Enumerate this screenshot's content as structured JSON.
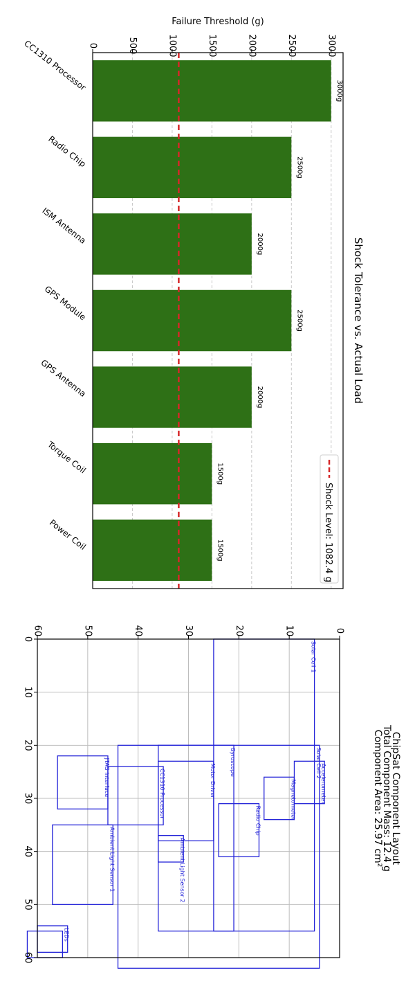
{
  "chart_data": [
    {
      "type": "bar",
      "orientation": "horizontal-in-rotated-page",
      "title": "Shock Tolerance vs. Actual Load",
      "ylabel": "Failure Threshold (g)",
      "categories": [
        "CC1310 Processor",
        "Radio Chip",
        "ISM Antenna",
        "GPS Module",
        "GPS Antenna",
        "Torque Coil",
        "Power Coil"
      ],
      "values": [
        3000,
        2500,
        2000,
        2500,
        2000,
        1500,
        1500
      ],
      "value_labels": [
        "3000g",
        "2500g",
        "2000g",
        "2500g",
        "2000g",
        "1500g",
        "1500g"
      ],
      "yticks": [
        0,
        500,
        1000,
        1500,
        2000,
        2500,
        3000
      ],
      "ylim": [
        0,
        3150
      ],
      "bar_color": "#2e7016",
      "threshold": {
        "value": 1082.4,
        "label": "Shock Level: 1082.4 g",
        "color": "#d62728",
        "style": "dashed"
      },
      "legend": "bottom-right",
      "grid": true
    },
    {
      "type": "layout",
      "title_lines": [
        "ChipSat Component Layout",
        "Total Component Mass: 12.4 g",
        "Component Area: 25.97 cm²"
      ],
      "xticks": [
        0,
        10,
        20,
        30,
        40,
        50,
        60
      ],
      "yticks": [
        0,
        10,
        20,
        30,
        40,
        50,
        60
      ],
      "xlim": [
        0,
        60
      ],
      "ylim": [
        0,
        60
      ],
      "grid": true,
      "edge_color": "#2323d8",
      "components": [
        {
          "name": "Solar Cell 1",
          "x": 0,
          "y": 5,
          "w": 55,
          "h": 20
        },
        {
          "name": "Solar Cell 2",
          "x": 20,
          "y": 4,
          "w": 50,
          "h": 40
        },
        {
          "name": "Accelerometer",
          "x": 23,
          "y": 3,
          "w": 8,
          "h": 6
        },
        {
          "name": "Magnetometer",
          "x": 26,
          "y": 9,
          "w": 8,
          "h": 6
        },
        {
          "name": "Radio Chip",
          "x": 31,
          "y": 16,
          "w": 10,
          "h": 8
        },
        {
          "name": "Motor Driver",
          "x": 23,
          "y": 25,
          "w": 15,
          "h": 11
        },
        {
          "name": "Ambient Light Sensor 2",
          "x": 37,
          "y": 31,
          "w": 5,
          "h": 5
        },
        {
          "name": "CC1310 Processor",
          "x": 24,
          "y": 35,
          "w": 11,
          "h": 11
        },
        {
          "name": "JTAG Interface",
          "x": 22,
          "y": 46,
          "w": 10,
          "h": 10
        },
        {
          "name": "Gyroscope",
          "x": 20,
          "y": 21,
          "w": 35,
          "h": 15
        },
        {
          "name": "Ambient Light Sensor 1",
          "x": 35,
          "y": 45,
          "w": 15,
          "h": 12
        },
        {
          "name": "LEDs",
          "x": 54,
          "y": 54,
          "w": 5,
          "h": 6
        },
        {
          "name": "",
          "x": 55,
          "y": 55,
          "w": 5,
          "h": 7
        }
      ]
    }
  ]
}
